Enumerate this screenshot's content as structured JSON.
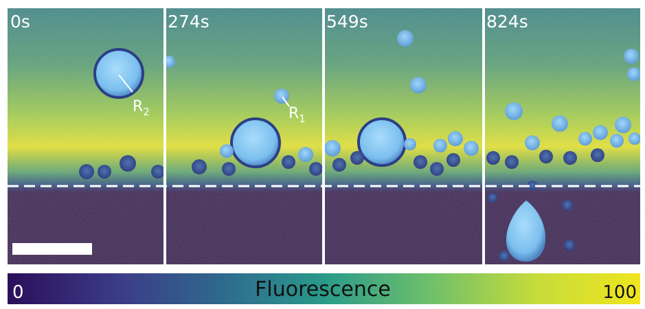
{
  "panels": [
    {
      "time_label": "0s"
    },
    {
      "time_label": "274s"
    },
    {
      "time_label": "549s"
    },
    {
      "time_label": "824s"
    }
  ],
  "annotations": {
    "r2": {
      "letter": "R",
      "sub": "2"
    },
    "r1": {
      "letter": "R",
      "sub": "1"
    }
  },
  "colorbar": {
    "title": "Fluorescence",
    "min_label": "0",
    "max_label": "100",
    "colors": [
      "#2b0f5a",
      "#3b3a86",
      "#2f6a8e",
      "#2a9a8a",
      "#6fc06a",
      "#c9dc3a",
      "#efe51e"
    ]
  },
  "colors": {
    "background_dark": "#3a0a55",
    "droplet": "#86c8f2",
    "divider": "#ffffff"
  }
}
